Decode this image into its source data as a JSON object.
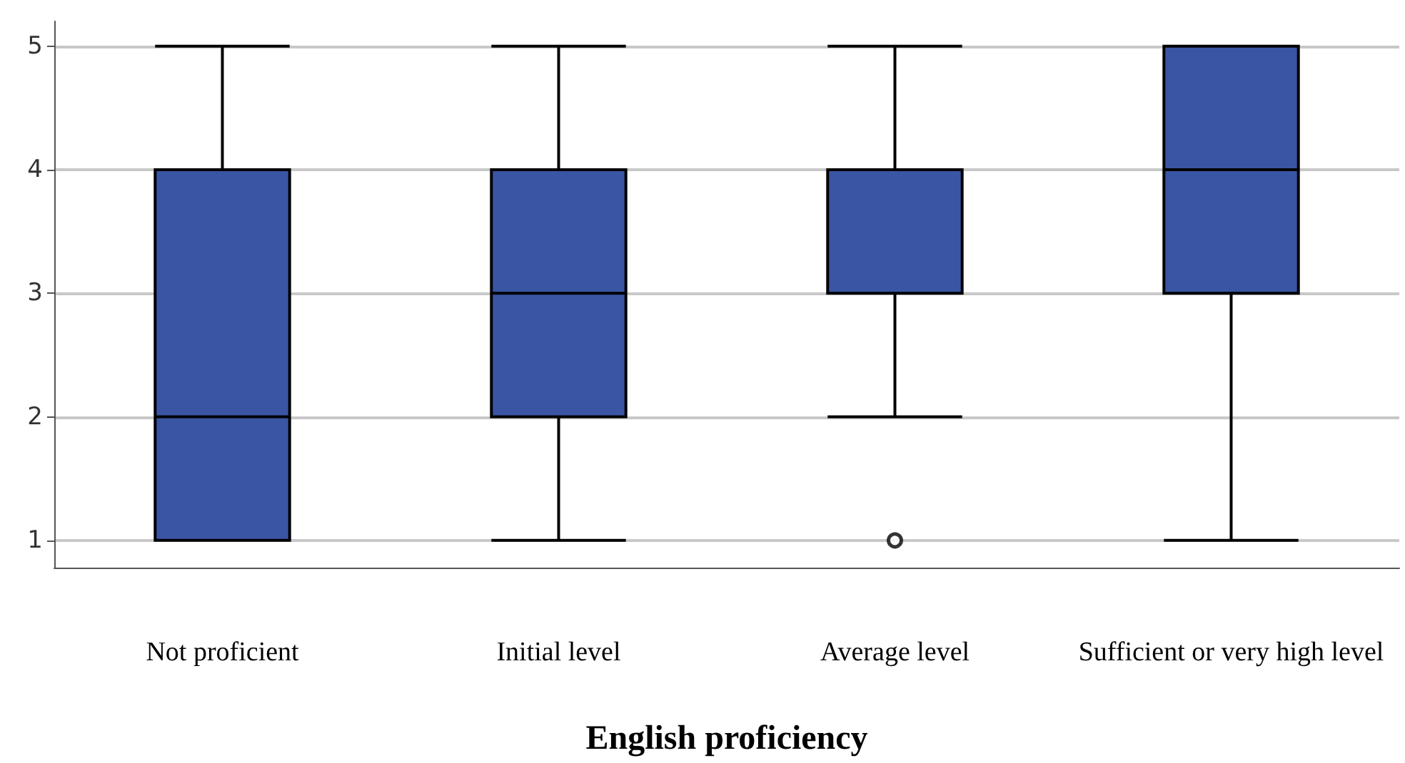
{
  "chart_data": {
    "type": "box",
    "xlabel": "English proficiency",
    "categories": [
      "Not proficient",
      "Initial level",
      "Average level",
      "Sufficient or very high level"
    ],
    "color": "#3a55a4",
    "boxes": [
      {
        "low": 1,
        "q1": 1,
        "median": 2,
        "q3": 4,
        "high": 5
      },
      {
        "low": 1,
        "q1": 2,
        "median": 3,
        "q3": 4,
        "high": 5
      },
      {
        "low": 2,
        "q1": 3,
        "median": 4,
        "q3": 4,
        "high": 5,
        "outliers": [
          1
        ]
      },
      {
        "low": 1,
        "q1": 3,
        "median": 4,
        "q3": 5,
        "high": 5
      }
    ],
    "ylim": [
      0.78,
      5.2
    ],
    "yticks": [
      1,
      2,
      3,
      4,
      5
    ],
    "grid": "y"
  }
}
